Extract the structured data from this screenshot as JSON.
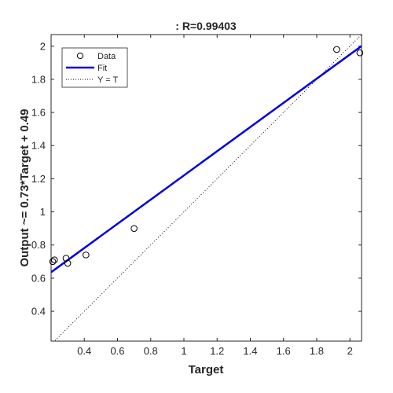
{
  "chart_data": {
    "type": "scatter",
    "title": ": R=0.99403",
    "xlabel": "Target",
    "ylabel": "Output ~= 0.73*Target + 0.49",
    "xlim": [
      0.2,
      2.07
    ],
    "ylim": [
      0.22,
      2.07
    ],
    "xticks": [
      0.4,
      0.6,
      0.8,
      1,
      1.2,
      1.4,
      1.6,
      1.8,
      2
    ],
    "xtick_labels": [
      "0.4",
      "0.6",
      "0.8",
      "1",
      "1.2",
      "1.4",
      "1.6",
      "1.8",
      "2"
    ],
    "yticks": [
      0.4,
      0.6,
      0.8,
      1,
      1.2,
      1.4,
      1.6,
      1.8,
      2
    ],
    "ytick_labels": [
      "0.4",
      "0.6",
      "0.8",
      "1",
      "1.2",
      "1.4",
      "1.6",
      "1.8",
      "2"
    ],
    "legend_position": "top-left",
    "grid": false,
    "series": [
      {
        "name": "Data",
        "kind": "markers",
        "marker": "circle-open",
        "color": "#000000",
        "points": [
          {
            "x": 0.21,
            "y": 0.7
          },
          {
            "x": 0.22,
            "y": 0.71
          },
          {
            "x": 0.29,
            "y": 0.72
          },
          {
            "x": 0.3,
            "y": 0.69
          },
          {
            "x": 0.41,
            "y": 0.74
          },
          {
            "x": 0.7,
            "y": 0.9
          },
          {
            "x": 1.92,
            "y": 1.98
          },
          {
            "x": 2.06,
            "y": 1.96
          }
        ]
      },
      {
        "name": "Fit",
        "kind": "line",
        "color": "#0000e6",
        "slope": 0.73,
        "intercept": 0.49
      },
      {
        "name": "Y = T",
        "kind": "dotted-line",
        "color": "#000000",
        "slope": 1,
        "intercept": 0
      }
    ]
  }
}
